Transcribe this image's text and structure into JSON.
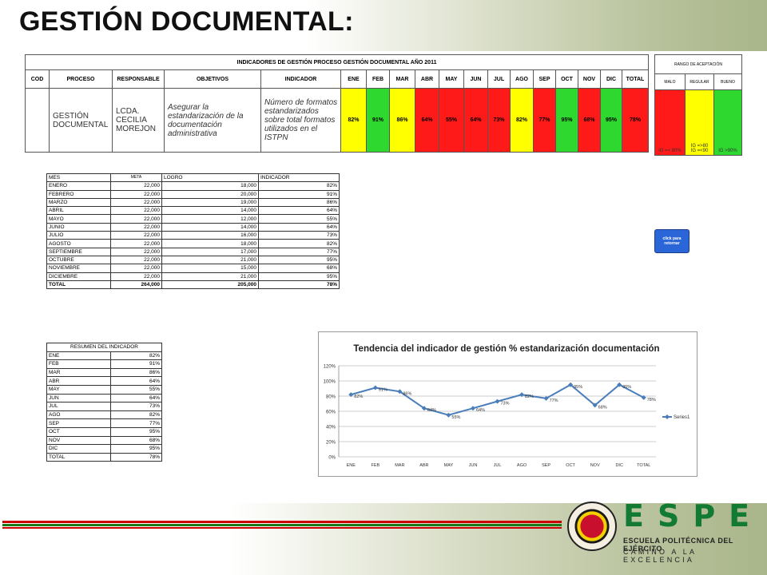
{
  "slide": {
    "title": "GESTIÓN DOCUMENTAL:"
  },
  "indicator_table": {
    "title": "INDICADORES DE GESTIÓN PROCESO GESTIÓN DOCUMENTAL AÑO 2011",
    "headers": [
      "COD",
      "PROCESO",
      "RESPONSABLE",
      "OBJETIVOS",
      "INDICADOR",
      "ENE",
      "FEB",
      "MAR",
      "ABR",
      "MAY",
      "JUN",
      "JUL",
      "AGO",
      "SEP",
      "OCT",
      "NOV",
      "DIC",
      "TOTAL"
    ],
    "row": {
      "cod": "",
      "proceso": "GESTIÓN DOCUMENTAL",
      "responsable": "LCDA. CECILIA MOREJON",
      "objetivos": "Asegurar la estandarización de la documentación administrativa",
      "indicador": "Número de formatos estandarizados sobre total formatos utilizados en el ISTPN",
      "values": [
        "82%",
        "91%",
        "86%",
        "64%",
        "55%",
        "64%",
        "73%",
        "82%",
        "77%",
        "95%",
        "68%",
        "95%",
        "78%"
      ],
      "colors": [
        "#ffff00",
        "#2ed82e",
        "#ffff00",
        "#ff1a1a",
        "#ff1a1a",
        "#ff1a1a",
        "#ff1a1a",
        "#ffff00",
        "#ff1a1a",
        "#2ed82e",
        "#ff1a1a",
        "#2ed82e",
        "#ff1a1a"
      ]
    }
  },
  "rango": {
    "title": "RANGO DE ACEPTACIÓN",
    "headers": [
      "MALO",
      "REGULAR",
      "BUENO"
    ],
    "malo": "IG =< 80%",
    "regular_1": "IG =>80",
    "regular_2": "IG =<90",
    "bueno": "IG  >90%"
  },
  "monthly_table": {
    "headers": [
      "MES",
      "META",
      "LOGRO",
      "INDICADOR"
    ],
    "rows": [
      [
        "ENERO",
        "22,000",
        "18,000",
        "82%"
      ],
      [
        "FEBRERO",
        "22,000",
        "20,000",
        "91%"
      ],
      [
        "MARZO",
        "22,000",
        "19,000",
        "86%"
      ],
      [
        "ABRIL",
        "22,000",
        "14,000",
        "64%"
      ],
      [
        "MAYO",
        "22,000",
        "12,000",
        "55%"
      ],
      [
        "JUNIO",
        "22,000",
        "14,000",
        "64%"
      ],
      [
        "JULIO",
        "22,000",
        "16,000",
        "73%"
      ],
      [
        "AGOSTO",
        "22,000",
        "18,000",
        "82%"
      ],
      [
        "SEPTIEMBRE",
        "22,000",
        "17,000",
        "77%"
      ],
      [
        "OCTUBRE",
        "22,000",
        "21,000",
        "95%"
      ],
      [
        "NOVIEMBRE",
        "22,000",
        "15,000",
        "68%"
      ],
      [
        "DICIEMBRE",
        "22,000",
        "21,000",
        "95%"
      ]
    ],
    "total": [
      "TOTAL",
      "264,000",
      "205,000",
      "78%"
    ]
  },
  "resumen_table": {
    "title": "RESUMEN DEL INDICADOR",
    "rows": [
      [
        "ENE",
        "82%"
      ],
      [
        "FEB",
        "91%"
      ],
      [
        "MAR",
        "86%"
      ],
      [
        "ABR",
        "64%"
      ],
      [
        "MAY",
        "55%"
      ],
      [
        "JUN",
        "64%"
      ],
      [
        "JUL",
        "73%"
      ],
      [
        "AGO",
        "82%"
      ],
      [
        "SEP",
        "77%"
      ],
      [
        "OCT",
        "95%"
      ],
      [
        "NOV",
        "68%"
      ],
      [
        "DIC",
        "95%"
      ],
      [
        "TOTAL",
        "78%"
      ]
    ]
  },
  "return_button": {
    "label_1": "click para",
    "label_2": "retornar"
  },
  "chart_data": {
    "type": "line",
    "title": "Tendencia del indicador de gestión % estandarización documentación",
    "categories": [
      "ENE",
      "FEB",
      "MAR",
      "ABR",
      "MAY",
      "JUN",
      "JUL",
      "AGO",
      "SEP",
      "OCT",
      "NOV",
      "DIC",
      "TOTAL"
    ],
    "series": [
      {
        "name": "Series1",
        "values": [
          82,
          91,
          86,
          64,
          55,
          64,
          73,
          82,
          77,
          95,
          68,
          95,
          78
        ]
      }
    ],
    "data_labels": [
      "82%",
      "91%",
      "86%",
      "64%",
      "55%",
      "64%",
      "73%",
      "82%",
      "77%",
      "95%",
      "68%",
      "95%",
      "78%"
    ],
    "y_ticks": [
      "0%",
      "20%",
      "40%",
      "60%",
      "80%",
      "100%",
      "120%"
    ],
    "ylim": [
      0,
      120
    ],
    "grid": true,
    "legend": "right",
    "color": "#4a7ebb"
  },
  "logo": {
    "word": "ESPE",
    "line1": "ESCUELA POLITÉCNICA DEL EJÉRCITO",
    "line2": "CAMINO A LA EXCELENCIA"
  }
}
